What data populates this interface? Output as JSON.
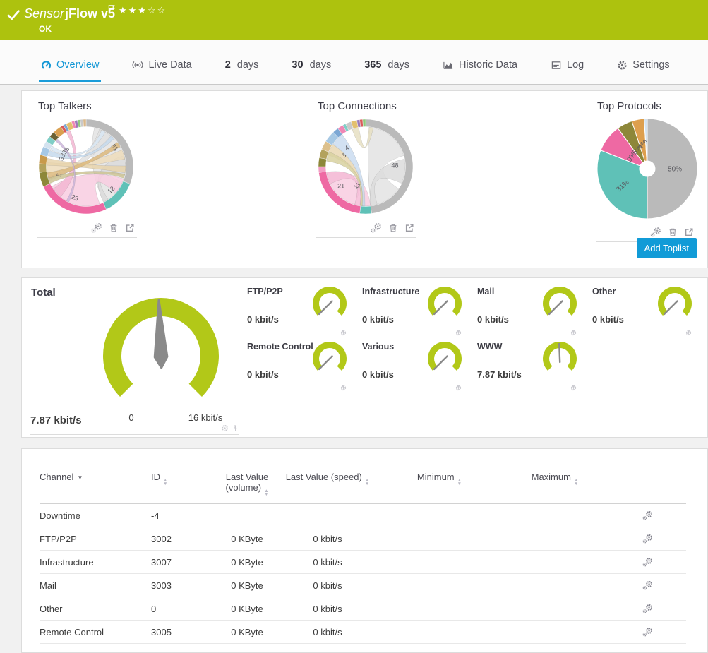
{
  "header": {
    "type_label": "Sensor",
    "name": "jFlow v5",
    "status": "OK",
    "rating_stars": "★★★☆☆",
    "bg_color": "#adc20e"
  },
  "tabs": [
    {
      "label": "Overview",
      "icon": "gauge-icon",
      "active": true
    },
    {
      "label": "Live Data",
      "icon": "live-icon"
    },
    {
      "num": "2",
      "label": "days"
    },
    {
      "num": "30",
      "label": "days"
    },
    {
      "num": "365",
      "label": "days"
    },
    {
      "label": "Historic Data",
      "icon": "chart-icon"
    },
    {
      "label": "Log",
      "icon": "log-icon"
    },
    {
      "label": "Settings",
      "icon": "gear-icon"
    }
  ],
  "toplists": {
    "cards": [
      {
        "title": "Top Talkers"
      },
      {
        "title": "Top Connections"
      },
      {
        "title": "Top Protocols"
      }
    ],
    "add_button_label": "Add Toplist"
  },
  "gauges": {
    "accent_color": "#b2c818",
    "total": {
      "label": "Total",
      "value": 7.87,
      "max": 16,
      "value_text": "7.87 kbit/s",
      "min_label": "0",
      "max_label": "16 kbit/s"
    },
    "channels": [
      {
        "label": "FTP/P2P",
        "value": 0,
        "max": 16,
        "value_text": "0 kbit/s"
      },
      {
        "label": "Infrastructure",
        "value": 0,
        "max": 16,
        "value_text": "0 kbit/s"
      },
      {
        "label": "Mail",
        "value": 0,
        "max": 16,
        "value_text": "0 kbit/s"
      },
      {
        "label": "Other",
        "value": 0,
        "max": 16,
        "value_text": "0 kbit/s"
      },
      {
        "label": "Remote Control",
        "value": 0,
        "max": 16,
        "value_text": "0 kbit/s"
      },
      {
        "label": "Various",
        "value": 0,
        "max": 16,
        "value_text": "0 kbit/s"
      },
      {
        "label": "WWW",
        "value": 7.87,
        "max": 16,
        "value_text": "7.87 kbit/s"
      }
    ]
  },
  "table": {
    "columns": {
      "channel": "Channel",
      "id": "ID",
      "volume": "Last Value (volume)",
      "speed": "Last Value (speed)",
      "min": "Minimum",
      "max": "Maximum"
    },
    "rows": [
      {
        "channel": "Downtime",
        "id": "-4",
        "volume": "",
        "speed": "",
        "min": "",
        "max": ""
      },
      {
        "channel": "FTP/P2P",
        "id": "3002",
        "volume": "0 KByte",
        "speed": "0 kbit/s",
        "min": "",
        "max": ""
      },
      {
        "channel": "Infrastructure",
        "id": "3007",
        "volume": "0 KByte",
        "speed": "0 kbit/s",
        "min": "",
        "max": ""
      },
      {
        "channel": "Mail",
        "id": "3003",
        "volume": "0 KByte",
        "speed": "0 kbit/s",
        "min": "",
        "max": ""
      },
      {
        "channel": "Other",
        "id": "0",
        "volume": "0 KByte",
        "speed": "0 kbit/s",
        "min": "",
        "max": ""
      },
      {
        "channel": "Remote Control",
        "id": "3005",
        "volume": "0 KByte",
        "speed": "0 kbit/s",
        "min": "",
        "max": ""
      }
    ]
  },
  "chart_data": [
    {
      "type": "chord",
      "title": "Top Talkers",
      "segments": [
        {
          "v": 31,
          "c": "#bababa"
        },
        {
          "v": 12,
          "c": "#5fc1b7"
        },
        {
          "v": 25,
          "c": "#ee69a3"
        },
        {
          "v": 5,
          "c": "#8d8739"
        },
        {
          "v": 3,
          "c": "#b3a25c"
        },
        {
          "v": 3,
          "c": "#c89a4b"
        },
        {
          "v": 3,
          "c": "#a6c8e4"
        },
        {
          "v": 2,
          "c": "#d3e2ef"
        },
        {
          "v": 2,
          "c": "#7fcec6"
        },
        {
          "v": 2,
          "c": "#6b6234"
        },
        {
          "v": 3,
          "c": "#d9a050"
        },
        {
          "v": 1,
          "c": "#d95b5b"
        },
        {
          "v": 1,
          "c": "#7ba7d4"
        },
        {
          "v": 2,
          "c": "#e3c06e"
        },
        {
          "v": 1,
          "c": "#ef87b5"
        },
        {
          "v": 1,
          "c": "#9b7bb8"
        },
        {
          "v": 1,
          "c": "#8fc97e"
        },
        {
          "v": 1,
          "c": "#c9c9c9"
        },
        {
          "v": 1,
          "c": "#d9b88a"
        }
      ],
      "ribbons": [
        {
          "a": [
            58,
            46
          ],
          "b": [
            133,
            20
          ],
          "c": "#e3e3e3"
        },
        {
          "a": [
            88,
            14
          ],
          "b": [
            150,
            4
          ],
          "c": "#dadada"
        },
        {
          "a": [
            30,
            10
          ],
          "b": [
            252,
            3
          ],
          "c": "#e0e0e0"
        },
        {
          "a": [
            200,
            40
          ],
          "b": [
            120,
            12
          ],
          "c": "#f8cde1"
        },
        {
          "a": [
            228,
            8
          ],
          "b": [
            333,
            3
          ],
          "c": "#f3b6d2"
        },
        {
          "a": [
            268,
            8
          ],
          "b": [
            72,
            7
          ],
          "c": "#eddcbb"
        },
        {
          "a": [
            277,
            5
          ],
          "b": [
            94,
            5
          ],
          "c": "#e7d3ab"
        },
        {
          "a": [
            256,
            5
          ],
          "b": [
            56,
            4
          ],
          "c": "#dcb97c"
        },
        {
          "a": [
            290,
            4
          ],
          "b": [
            42,
            3
          ],
          "c": "#c5d9ec"
        },
        {
          "a": [
            298,
            3
          ],
          "b": [
            26,
            3
          ],
          "c": "#d8e6f3"
        },
        {
          "a": [
            249,
            4
          ],
          "b": [
            104,
            3
          ],
          "c": "#cdc393"
        },
        {
          "a": [
            312,
            2
          ],
          "b": [
            208,
            2
          ],
          "c": "#cbb5da"
        }
      ],
      "labels": [
        {
          "t": "31",
          "a": 56,
          "r": 0.73,
          "rot": 50
        },
        {
          "t": "12",
          "a": 133,
          "r": 0.72,
          "rot": -45
        },
        {
          "t": "25",
          "a": 200,
          "r": 0.7,
          "rot": 25
        },
        {
          "t": "5",
          "a": 253,
          "r": 0.6,
          "rot": -78
        },
        {
          "t": "3",
          "a": 288,
          "r": 0.55,
          "rot": -60
        },
        {
          "t": "3",
          "a": 296,
          "r": 0.55,
          "rot": -60
        },
        {
          "t": "3",
          "a": 304,
          "r": 0.55,
          "rot": -60
        },
        {
          "t": "3",
          "a": 312,
          "r": 0.55,
          "rot": -60
        }
      ]
    },
    {
      "type": "chord",
      "title": "Top Connections",
      "segments": [
        {
          "v": 48,
          "c": "#bababa"
        },
        {
          "v": 4,
          "c": "#5fc1b7"
        },
        {
          "v": 21,
          "c": "#ee69a3"
        },
        {
          "v": 2,
          "c": "#f29ec4"
        },
        {
          "v": 3,
          "c": "#8d8739"
        },
        {
          "v": 3,
          "c": "#b3a25c"
        },
        {
          "v": 3,
          "c": "#dcc08c"
        },
        {
          "v": 4,
          "c": "#a6c8e4"
        },
        {
          "v": 2,
          "c": "#7ba7d4"
        },
        {
          "v": 2,
          "c": "#ef87b5"
        },
        {
          "v": 1,
          "c": "#7fcec6"
        },
        {
          "v": 2,
          "c": "#c9c9c9"
        },
        {
          "v": 2,
          "c": "#e3c06e"
        },
        {
          "v": 1,
          "c": "#9b7bb8"
        },
        {
          "v": 1,
          "c": "#d95b5b"
        },
        {
          "v": 1,
          "c": "#8fc97e"
        }
      ],
      "ribbons": [
        {
          "a": [
            40,
            34
          ],
          "b": [
            148,
            24
          ],
          "c": "#e3e3e3"
        },
        {
          "a": [
            97,
            18
          ],
          "b": [
            168,
            5
          ],
          "c": "#dcdcdc"
        },
        {
          "a": [
            228,
            33
          ],
          "b": [
            181,
            8
          ],
          "c": "#f8cde1"
        },
        {
          "a": [
            253,
            9
          ],
          "b": [
            192,
            4
          ],
          "c": "#f4bcd7"
        },
        {
          "a": [
            296,
            9
          ],
          "b": [
            184,
            2
          ],
          "c": "#e9d7b2"
        },
        {
          "a": [
            285,
            7
          ],
          "b": [
            186,
            2
          ],
          "c": "#d8d1a0"
        },
        {
          "a": [
            314,
            10
          ],
          "b": [
            183,
            2
          ],
          "c": "#cadcf0"
        },
        {
          "a": [
            345,
            5
          ],
          "b": [
            8,
            3
          ],
          "c": "#e6dfc2"
        }
      ],
      "labels": [
        {
          "t": "48",
          "a": 88,
          "r": 0.62,
          "rot": 0
        },
        {
          "t": "21",
          "a": 232,
          "r": 0.66,
          "rot": 0
        },
        {
          "t": "11",
          "a": 205,
          "r": 0.44,
          "rot": -55
        },
        {
          "t": "3",
          "a": 297,
          "r": 0.52,
          "rot": -48
        },
        {
          "t": "4",
          "a": 315,
          "r": 0.56,
          "rot": -38
        }
      ]
    },
    {
      "type": "pie",
      "title": "Top Protocols",
      "slices": [
        {
          "v": 50,
          "c": "#bababa",
          "label": "50%"
        },
        {
          "v": 31,
          "c": "#5fc1b7",
          "label": "31%"
        },
        {
          "v": 9,
          "c": "#ee69a3",
          "label": "9%"
        },
        {
          "v": 5,
          "c": "#8d8739",
          "label": "5%"
        },
        {
          "v": 4,
          "c": "#dd9f4e",
          "label": "4%"
        },
        {
          "v": 1,
          "c": "#d3e2ef",
          "label": ""
        }
      ],
      "labels": [
        {
          "t": "50%",
          "a": 90,
          "r": 0.55,
          "rot": 0
        },
        {
          "t": "31%",
          "a": 236,
          "r": 0.6,
          "rot": -42
        },
        {
          "t": "9%",
          "a": 307,
          "r": 0.4,
          "rot": -56
        },
        {
          "t": "5%",
          "a": 331,
          "r": 0.44,
          "rot": -52
        },
        {
          "t": "4%",
          "a": 349,
          "r": 0.5,
          "rot": -48
        }
      ]
    }
  ]
}
